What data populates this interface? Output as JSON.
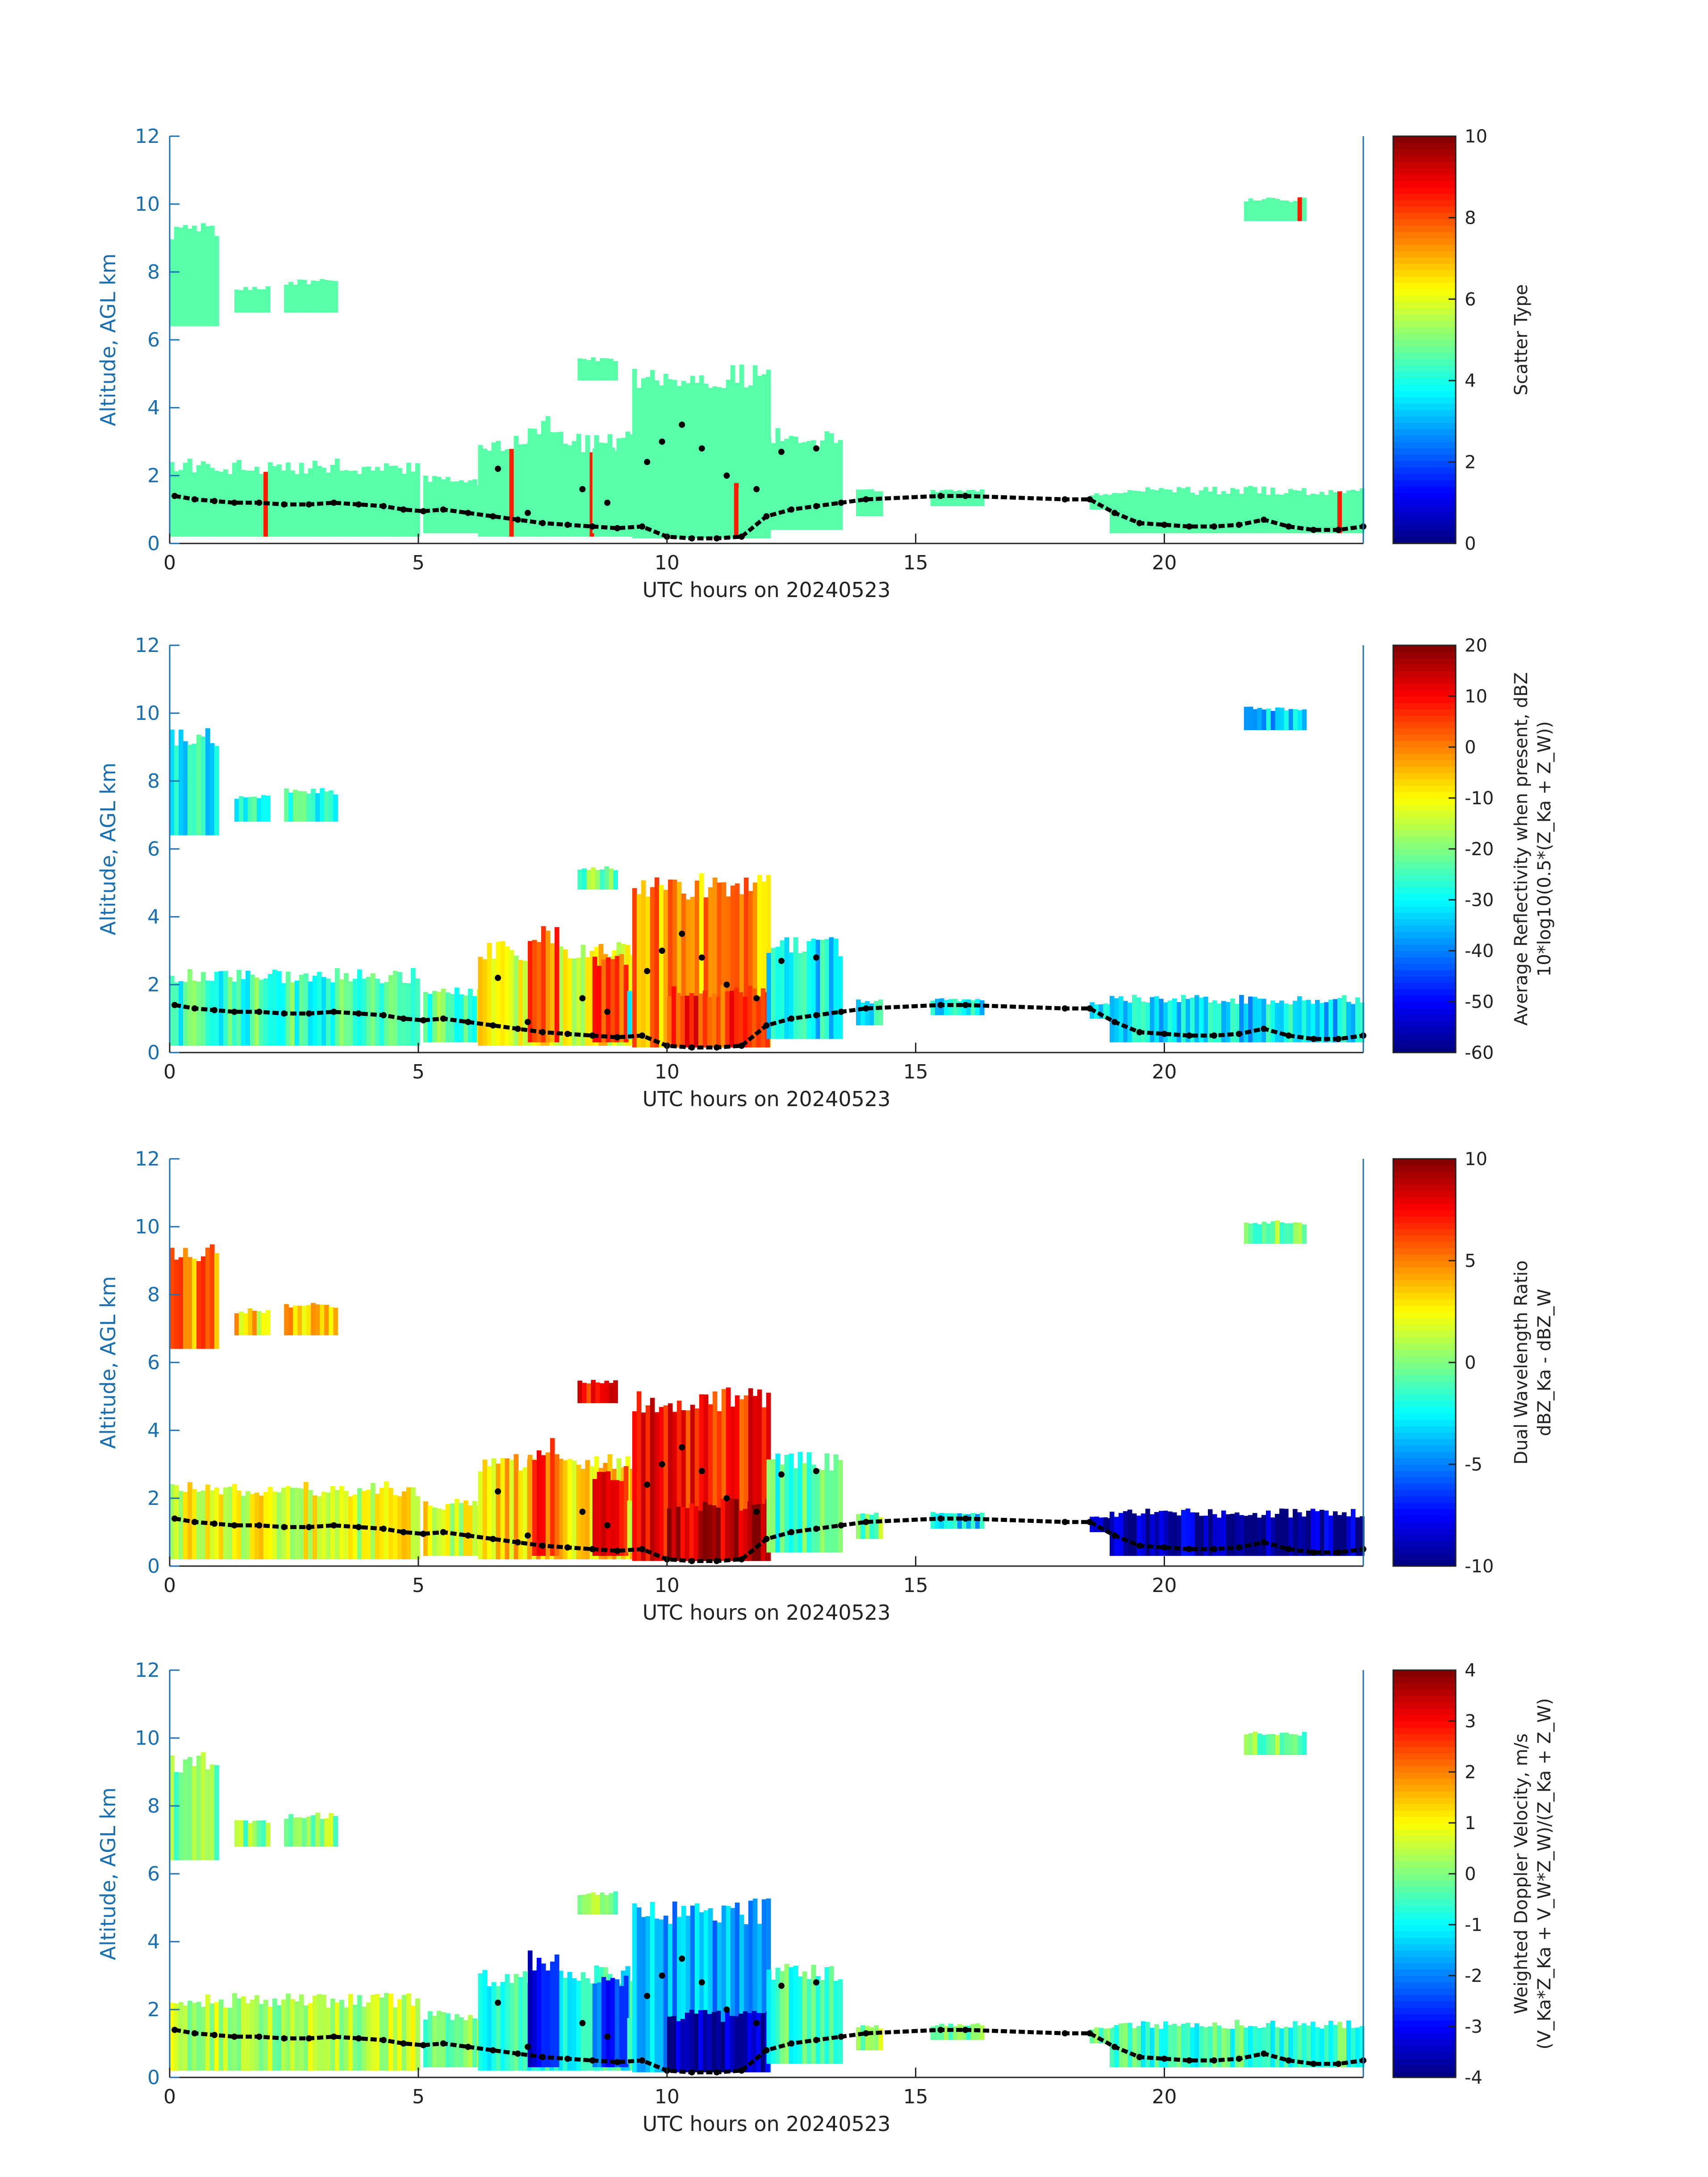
{
  "colors": {
    "axis_y": "#1a6fb0",
    "axis_x": "#222222",
    "cloud_main": "#2ff5df",
    "boundary_points": "#000000"
  },
  "chart_data": [
    {
      "type": "heatmap",
      "title": "",
      "xlabel": "UTC hours on 20240523",
      "ylabel": "Altitude, AGL km",
      "xlim": [
        0,
        24
      ],
      "ylim": [
        0,
        12
      ],
      "xticks": [
        "0",
        "5",
        "10",
        "15",
        "20"
      ],
      "yticks": [
        "0",
        "2",
        "4",
        "6",
        "8",
        "10",
        "12"
      ],
      "colorbar": {
        "label_lines": [
          "Scatter Type"
        ],
        "range": [
          0,
          10
        ],
        "ticks": [
          "0",
          "2",
          "4",
          "6",
          "8",
          "10"
        ]
      },
      "grid": false
    },
    {
      "type": "heatmap",
      "title": "",
      "xlabel": "UTC hours on 20240523",
      "ylabel": "Altitude, AGL km",
      "xlim": [
        0,
        24
      ],
      "ylim": [
        0,
        12
      ],
      "xticks": [
        "0",
        "5",
        "10",
        "15",
        "20"
      ],
      "yticks": [
        "0",
        "2",
        "4",
        "6",
        "8",
        "10",
        "12"
      ],
      "colorbar": {
        "label_lines": [
          "Average Reflectivity when present, dBZ",
          "10*log10(0.5*(Z_Ka + Z_W))"
        ],
        "range": [
          -60,
          20
        ],
        "ticks": [
          "-60",
          "-50",
          "-40",
          "-30",
          "-20",
          "-10",
          "0",
          "10",
          "20"
        ]
      },
      "grid": false
    },
    {
      "type": "heatmap",
      "title": "",
      "xlabel": "UTC hours on 20240523",
      "ylabel": "Altitude, AGL km",
      "xlim": [
        0,
        24
      ],
      "ylim": [
        0,
        12
      ],
      "xticks": [
        "0",
        "5",
        "10",
        "15",
        "20"
      ],
      "yticks": [
        "0",
        "2",
        "4",
        "6",
        "8",
        "10",
        "12"
      ],
      "colorbar": {
        "label_lines": [
          "Dual Wavelength Ratio",
          "dBZ_Ka - dBZ_W"
        ],
        "range": [
          -10,
          10
        ],
        "ticks": [
          "-10",
          "-5",
          "0",
          "5",
          "10"
        ]
      },
      "grid": false
    },
    {
      "type": "heatmap",
      "title": "",
      "xlabel": "UTC hours on 20240523",
      "ylabel": "Altitude, AGL km",
      "xlim": [
        0,
        24
      ],
      "ylim": [
        0,
        12
      ],
      "xticks": [
        "0",
        "5",
        "10",
        "15",
        "20"
      ],
      "yticks": [
        "0",
        "2",
        "4",
        "6",
        "8",
        "10",
        "12"
      ],
      "colorbar": {
        "label_lines": [
          "Weighted Doppler Velocity, m/s",
          "(V_Ka*Z_Ka + V_W*Z_W)/(Z_Ka + Z_W)"
        ],
        "range": [
          -4,
          4
        ],
        "ticks": [
          "-4",
          "-3",
          "-2",
          "-1",
          "0",
          "1",
          "2",
          "3",
          "4"
        ]
      },
      "grid": false
    }
  ],
  "echo_regions": [
    {
      "x0": 0.0,
      "x1": 0.9,
      "y0": 6.4,
      "y1": 9.6,
      "v": [
        5,
        -28,
        5,
        0
      ]
    },
    {
      "x0": 1.3,
      "x1": 2.0,
      "y0": 6.8,
      "y1": 7.6,
      "v": [
        5,
        -28,
        3,
        0
      ]
    },
    {
      "x0": 2.3,
      "x1": 3.3,
      "y0": 6.8,
      "y1": 7.8,
      "v": [
        5,
        -28,
        4,
        0
      ]
    },
    {
      "x0": 0.0,
      "x1": 5.0,
      "y0": 0.2,
      "y1": 2.5,
      "v": [
        5,
        -25,
        2,
        0.4
      ]
    },
    {
      "x0": 5.1,
      "x1": 6.2,
      "y0": 0.3,
      "y1": 2.0,
      "v": [
        5,
        -22,
        2,
        0
      ]
    },
    {
      "x0": 6.2,
      "x1": 9.3,
      "y0": 0.2,
      "y1": 3.3,
      "v": [
        5,
        -10,
        3,
        -0.8
      ]
    },
    {
      "x0": 8.2,
      "x1": 9.0,
      "y0": 4.8,
      "y1": 5.5,
      "v": [
        5,
        -20,
        7,
        0
      ]
    },
    {
      "x0": 7.2,
      "x1": 7.8,
      "y0": 0.3,
      "y1": 3.8,
      "v": [
        5,
        2,
        6,
        -3.2
      ]
    },
    {
      "x0": 8.5,
      "x1": 9.2,
      "y0": 0.3,
      "y1": 3.0,
      "v": [
        5,
        4,
        8,
        -2.5
      ]
    },
    {
      "x0": 9.2,
      "x1": 10.2,
      "y0": 0.4,
      "y1": 2.0,
      "v": [
        5,
        -30,
        0,
        -0.5
      ]
    },
    {
      "x0": 9.3,
      "x1": 12.0,
      "y0": 0.15,
      "y1": 5.3,
      "v": [
        5,
        -2,
        7,
        -1.6
      ]
    },
    {
      "x0": 10.0,
      "x1": 12.0,
      "y0": 0.15,
      "y1": 2.0,
      "v": [
        5,
        6,
        9,
        -3.6
      ]
    },
    {
      "x0": 12.0,
      "x1": 13.5,
      "y0": 0.4,
      "y1": 3.4,
      "v": [
        5,
        -30,
        -1,
        -0.5
      ]
    },
    {
      "x0": 13.8,
      "x1": 14.3,
      "y0": 0.8,
      "y1": 1.6,
      "v": [
        5,
        -30,
        0,
        0.2
      ]
    },
    {
      "x0": 15.3,
      "x1": 16.3,
      "y0": 1.1,
      "y1": 1.6,
      "v": [
        5,
        -32,
        -3,
        0
      ]
    },
    {
      "x0": 18.5,
      "x1": 19.5,
      "y0": 1.0,
      "y1": 1.5,
      "v": [
        5,
        -32,
        -9,
        0
      ]
    },
    {
      "x0": 18.9,
      "x1": 24.0,
      "y0": 0.3,
      "y1": 1.7,
      "v": [
        5,
        -32,
        -9,
        -0.5
      ]
    },
    {
      "x0": 21.6,
      "x1": 22.8,
      "y0": 9.5,
      "y1": 10.2,
      "v": [
        5,
        -35,
        0,
        0
      ]
    }
  ],
  "boundary_points": [
    [
      0.1,
      1.4
    ],
    [
      0.5,
      1.3
    ],
    [
      0.9,
      1.25
    ],
    [
      1.3,
      1.2
    ],
    [
      1.8,
      1.2
    ],
    [
      2.3,
      1.15
    ],
    [
      2.8,
      1.15
    ],
    [
      3.3,
      1.2
    ],
    [
      3.8,
      1.15
    ],
    [
      4.3,
      1.1
    ],
    [
      4.7,
      1.0
    ],
    [
      5.1,
      0.95
    ],
    [
      5.5,
      1.0
    ],
    [
      6.0,
      0.9
    ],
    [
      6.5,
      0.8
    ],
    [
      7.0,
      0.7
    ],
    [
      7.5,
      0.6
    ],
    [
      8.0,
      0.55
    ],
    [
      8.5,
      0.5
    ],
    [
      9.0,
      0.45
    ],
    [
      9.5,
      0.5
    ],
    [
      10.0,
      0.2
    ],
    [
      10.5,
      0.15
    ],
    [
      11.0,
      0.15
    ],
    [
      11.5,
      0.2
    ],
    [
      12.0,
      0.8
    ],
    [
      12.5,
      1.0
    ],
    [
      13.0,
      1.1
    ],
    [
      13.5,
      1.2
    ],
    [
      14.0,
      1.3
    ],
    [
      15.5,
      1.4
    ],
    [
      16.0,
      1.4
    ],
    [
      18.0,
      1.3
    ],
    [
      18.5,
      1.3
    ],
    [
      19.0,
      0.9
    ],
    [
      19.5,
      0.6
    ],
    [
      20.0,
      0.55
    ],
    [
      20.5,
      0.5
    ],
    [
      21.0,
      0.5
    ],
    [
      21.5,
      0.55
    ],
    [
      22.0,
      0.7
    ],
    [
      22.5,
      0.5
    ],
    [
      23.0,
      0.4
    ],
    [
      23.5,
      0.4
    ],
    [
      24.0,
      0.5
    ],
    [
      9.6,
      2.4
    ],
    [
      9.9,
      3.0
    ],
    [
      10.3,
      3.5
    ],
    [
      10.7,
      2.8
    ],
    [
      11.2,
      2.0
    ],
    [
      11.8,
      1.6
    ],
    [
      12.3,
      2.7
    ],
    [
      13.0,
      2.8
    ],
    [
      8.3,
      1.6
    ],
    [
      8.8,
      1.2
    ],
    [
      7.2,
      0.9
    ],
    [
      6.6,
      2.2
    ]
  ]
}
